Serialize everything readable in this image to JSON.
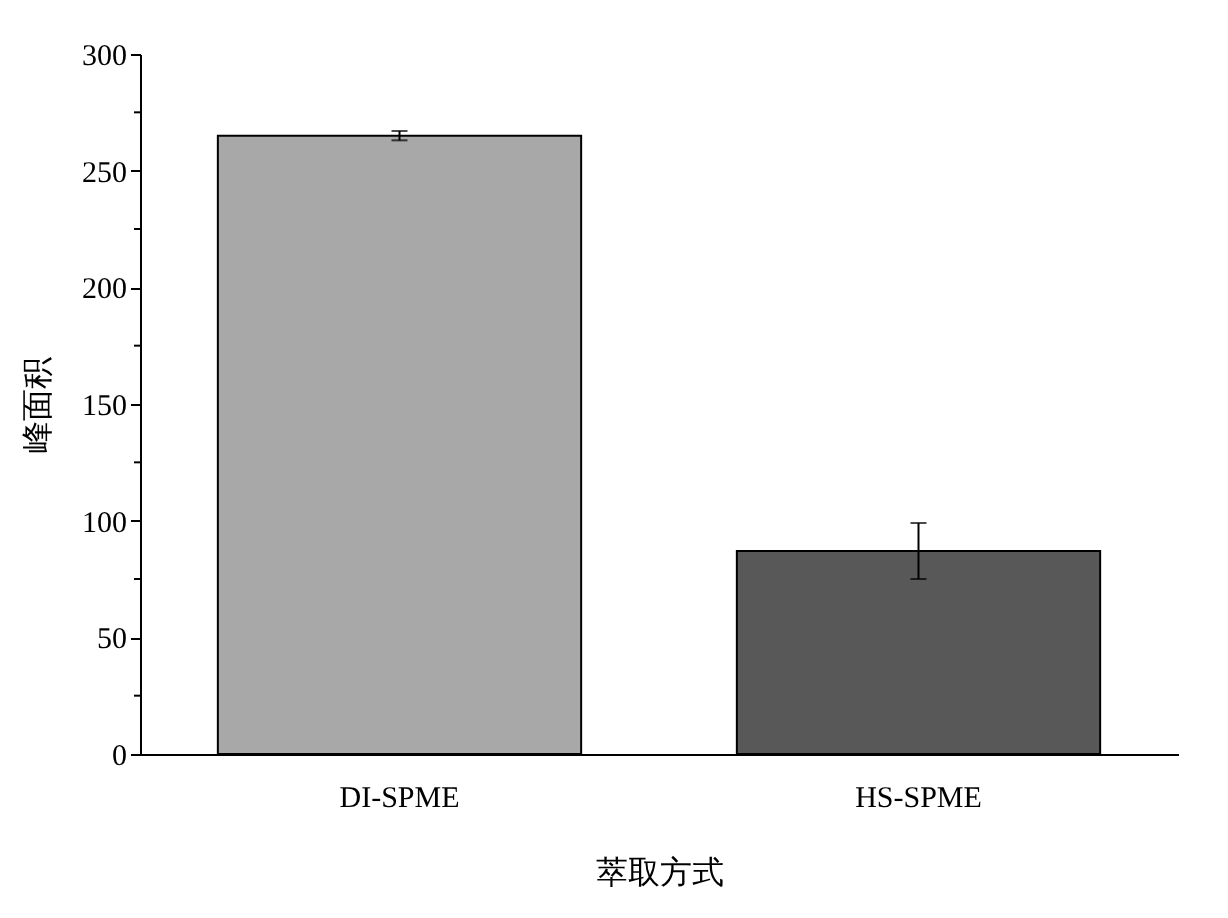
{
  "chart_data": {
    "type": "bar",
    "xlabel": "萃取方式",
    "ylabel": "峰面积",
    "categories": [
      "DI-SPME",
      "HS-SPME"
    ],
    "values": [
      265,
      87
    ],
    "colors": [
      "#a8a8a8",
      "#585858"
    ],
    "errors": [
      2,
      12
    ],
    "ylim": [
      0,
      300
    ],
    "yticks": [
      0,
      {
        "value": 25,
        "label": null
      },
      50,
      {
        "value": 75,
        "label": null
      },
      100,
      {
        "value": 125,
        "label": null
      },
      150,
      {
        "value": 175,
        "label": null
      },
      200,
      {
        "value": 225,
        "label": null
      },
      250,
      {
        "value": 275,
        "label": null
      },
      300
    ],
    "grid": false
  }
}
